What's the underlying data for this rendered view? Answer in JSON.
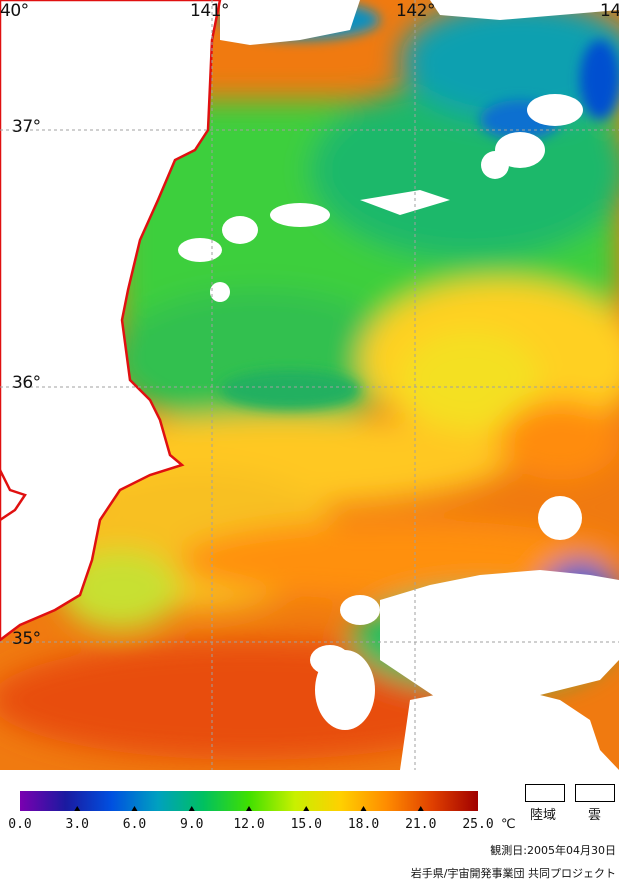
{
  "map": {
    "lon_labels": [
      "40°",
      "141°",
      "142°",
      "14"
    ],
    "lat_labels": [
      "37°",
      "36°",
      "35°"
    ]
  },
  "legend": {
    "ticks": [
      "0.0",
      "3.0",
      "6.0",
      "9.0",
      "12.0",
      "15.0",
      "18.0",
      "21.0",
      "25.0"
    ],
    "unit": "℃",
    "land_label": "陸域",
    "cloud_label": "雲",
    "date_text": "観測日:2005年04月30日",
    "credit_text": "岩手県/宇宙開発事業団 共同プロジェクト"
  },
  "colors": {
    "coastline": "#e01010",
    "grid": "#a0a0a0",
    "scale_stops": [
      "#7a00b0",
      "#1a1aa0",
      "#0050e0",
      "#00a0c0",
      "#00c060",
      "#40e000",
      "#c8f000",
      "#ffd000",
      "#ff8c00",
      "#e04000",
      "#a00000"
    ]
  }
}
